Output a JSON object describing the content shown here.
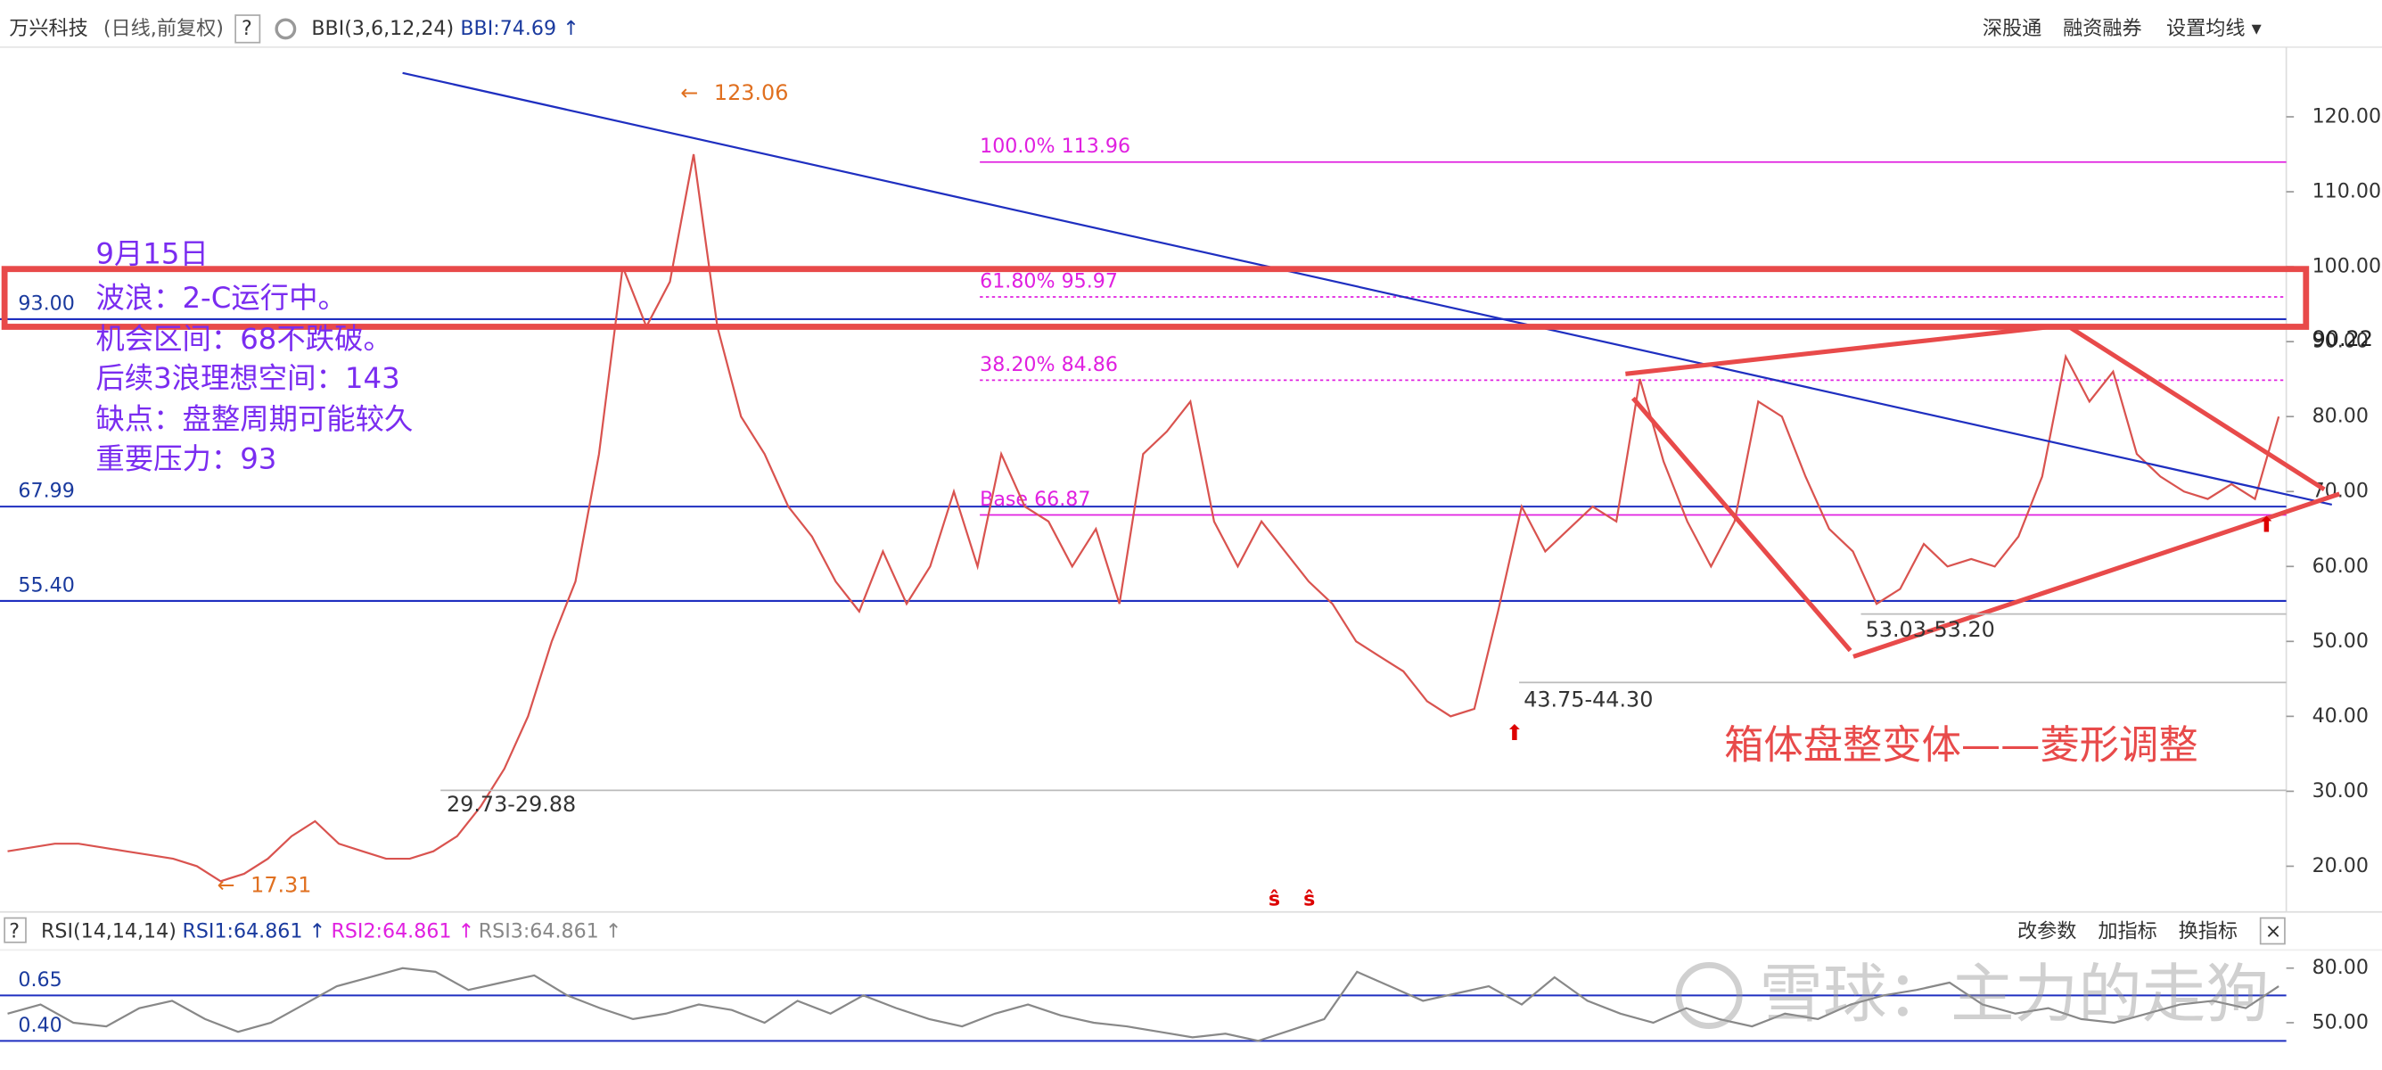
{
  "toolbar": {
    "stock": "万兴科技",
    "mode": "(日线,前复权)",
    "help": "?",
    "indicator": "BBI(3,6,12,24)",
    "indicator_value": "BBI:74.69 ↑",
    "right_buttons": [
      "深股通",
      "融资融券",
      "设置均线 ▾"
    ]
  },
  "note": [
    "9月15日",
    "波浪：2-C运行中。",
    "机会区间：68不跌破。",
    "后续3浪理想空间：143",
    "缺点：盘整周期可能较久",
    "重要压力：93"
  ],
  "pattern_label": "箱体盘整变体——菱形调整",
  "ranges": [
    "29.73-29.88",
    "43.75-44.30",
    "53.03-53.20"
  ],
  "signal_marks": [
    "ŝ",
    "ŝ"
  ],
  "rsi_header": {
    "name": "RSI(14,14,14)",
    "rsi1": "RSI1:64.861 ↑",
    "rsi2": "RSI2:64.861 ↑",
    "rsi3": "RSI3:64.861 ↑",
    "buttons": [
      "改参数",
      "加指标",
      "换指标",
      "×"
    ]
  },
  "watermark": "雪球：主力的走狗",
  "chart_data": [
    {
      "type": "line",
      "ylim": [
        13.9,
        129.3
      ],
      "yticks": [
        {
          "value": 20,
          "label": "20.00"
        },
        {
          "value": 30,
          "label": "30.00"
        },
        {
          "value": 40,
          "label": "40.00"
        },
        {
          "value": 50,
          "label": "50.00"
        },
        {
          "value": 60,
          "label": "60.00"
        },
        {
          "value": 70,
          "label": "70.00"
        },
        {
          "value": 80,
          "label": "80.00"
        },
        {
          "value": 90,
          "label": "90.00"
        },
        {
          "value": 100,
          "label": "100.00"
        },
        {
          "value": 110,
          "label": "110.00"
        },
        {
          "value": 120,
          "label": "120.00"
        }
      ],
      "series": [
        {
          "name": "close",
          "color": "#d9534f",
          "values": [
            22,
            22.5,
            23,
            23,
            22.5,
            22,
            21.5,
            21,
            20,
            18,
            19,
            21,
            24,
            26,
            23,
            22,
            21,
            21,
            22,
            24,
            28,
            33,
            40,
            50,
            58,
            75,
            100,
            92,
            98,
            115,
            92,
            80,
            75,
            68,
            64,
            58,
            54,
            62,
            55,
            60,
            70,
            60,
            75,
            68,
            66,
            60,
            65,
            55,
            75,
            78,
            82,
            66,
            60,
            66,
            62,
            58,
            55,
            50,
            48,
            46,
            42,
            40,
            41,
            54,
            68,
            62,
            65,
            68,
            66,
            85,
            74,
            66,
            60,
            66,
            82,
            80,
            72,
            65,
            62,
            55,
            57,
            63,
            60,
            61,
            60,
            64,
            72,
            88,
            82,
            86,
            75,
            72,
            70,
            69,
            71,
            69,
            80
          ]
        }
      ],
      "levels": [
        {
          "value": 93,
          "label": "93.00"
        },
        {
          "value": 67.99,
          "label": "67.99"
        },
        {
          "value": 55.4,
          "label": "55.40"
        }
      ],
      "fib_levels": [
        {
          "value": 113.96,
          "label": "100.0% 113.96"
        },
        {
          "value": 95.97,
          "label": "61.80% 95.97"
        },
        {
          "value": 84.86,
          "label": "38.20% 84.86"
        },
        {
          "value": 66.87,
          "label": "Base 66.87"
        }
      ],
      "high": 123.06,
      "low": 17.31,
      "current_price": 90.22
    },
    {
      "type": "line",
      "ylim": [
        24,
        90
      ],
      "yticks": [
        {
          "value": 80,
          "label": "80.00"
        },
        {
          "value": 50,
          "label": "50.00"
        }
      ],
      "levels": [
        {
          "value": 65,
          "label": "0.65"
        },
        {
          "value": 40,
          "label": "0.40"
        }
      ],
      "series": [
        {
          "name": "RSI1",
          "color": "#888888",
          "values": [
            55,
            60,
            50,
            48,
            58,
            62,
            52,
            45,
            50,
            60,
            70,
            75,
            80,
            78,
            68,
            72,
            76,
            65,
            58,
            52,
            55,
            60,
            57,
            50,
            62,
            55,
            65,
            58,
            52,
            48,
            55,
            60,
            54,
            50,
            48,
            45,
            42,
            44,
            40,
            46,
            52,
            78,
            70,
            62,
            66,
            70,
            60,
            75,
            62,
            55,
            50,
            58,
            52,
            48,
            55,
            52,
            60,
            65,
            68,
            72,
            60,
            55,
            58,
            52,
            50,
            55,
            60,
            62,
            58,
            70
          ]
        }
      ]
    }
  ]
}
